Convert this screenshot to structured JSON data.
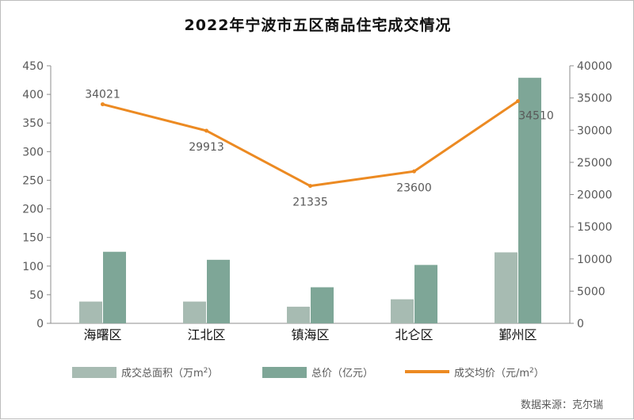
{
  "chart_data": {
    "type": "bar+line",
    "title": "2022年宁波市五区商品住宅成交情况",
    "categories": [
      "海曙区",
      "江北区",
      "镇海区",
      "北仑区",
      "鄞州区"
    ],
    "y_left": {
      "ylim": [
        0,
        450
      ],
      "ticks": [
        "0",
        "50",
        "100",
        "150",
        "200",
        "250",
        "300",
        "350",
        "400",
        "450"
      ]
    },
    "y_right": {
      "ylim": [
        0,
        40000
      ],
      "ticks": [
        "0",
        "5000",
        "10000",
        "15000",
        "20000",
        "25000",
        "30000",
        "35000",
        "40000"
      ]
    },
    "series": [
      {
        "name": "成交总面积（万m²）",
        "type": "bar",
        "axis": "left",
        "color": "#a7bbb2",
        "values": [
          38,
          38,
          29,
          42,
          124
        ]
      },
      {
        "name": "总价（亿元）",
        "type": "bar",
        "axis": "left",
        "color": "#7ea697",
        "values": [
          125,
          111,
          63,
          102,
          429
        ]
      },
      {
        "name": "成交均价（元/m²）",
        "type": "line",
        "axis": "right",
        "color": "#ec8a22",
        "values": [
          34021,
          29913,
          21335,
          23600,
          34510
        ],
        "labels": [
          "34021",
          "29913",
          "21335",
          "23600",
          "34510"
        ]
      }
    ],
    "legend": {
      "placement": "bottom",
      "items": [
        {
          "prefix": "成交总面积（万m",
          "sup": "2",
          "suffix": "）"
        },
        {
          "prefix": "总价（亿元）",
          "sup": "",
          "suffix": ""
        },
        {
          "prefix": "成交均价（元/m",
          "sup": "2",
          "suffix": "）"
        }
      ]
    },
    "grid": false,
    "source": "数据来源：克尔瑞"
  }
}
